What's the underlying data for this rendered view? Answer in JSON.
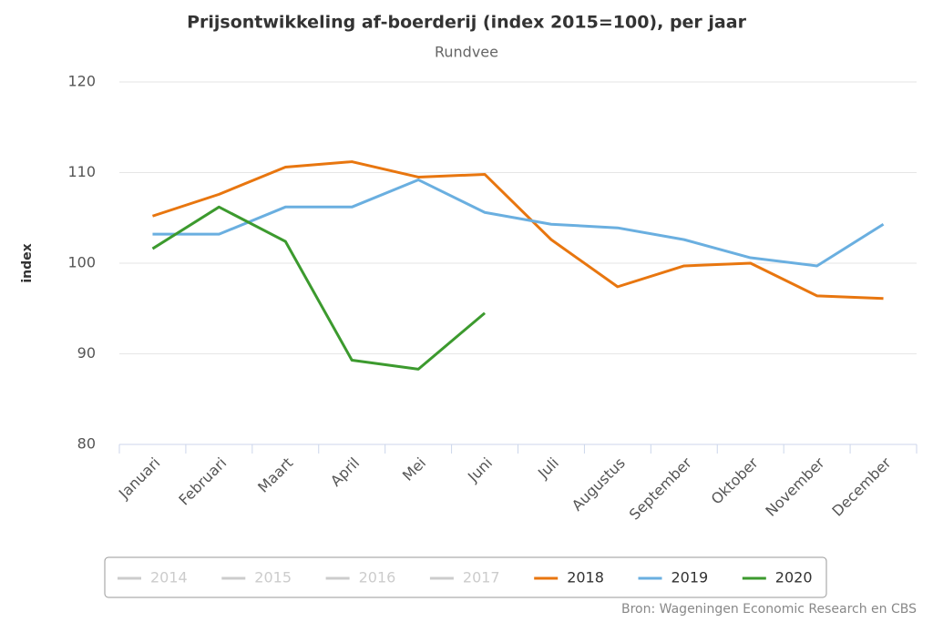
{
  "chart_data": {
    "type": "line",
    "title": "Prijsontwikkeling af-boerderij (index 2015=100), per jaar",
    "subtitle": "Rundvee",
    "y_label": "index",
    "source": "Bron: Wageningen Economic Research en CBS",
    "categories": [
      "Januari",
      "Februari",
      "Maart",
      "April",
      "Mei",
      "Juni",
      "Juli",
      "Augustus",
      "September",
      "Oktober",
      "November",
      "December"
    ],
    "ylim": [
      80,
      120
    ],
    "yticks": [
      80,
      90,
      100,
      110,
      120
    ],
    "grid": true,
    "series": [
      {
        "name": "2014",
        "color": "#cccccc",
        "visible": false,
        "values": [
          null,
          null,
          null,
          null,
          null,
          null,
          null,
          null,
          null,
          null,
          null,
          null
        ]
      },
      {
        "name": "2015",
        "color": "#cccccc",
        "visible": false,
        "values": [
          null,
          null,
          null,
          null,
          null,
          null,
          null,
          null,
          null,
          null,
          null,
          null
        ]
      },
      {
        "name": "2016",
        "color": "#cccccc",
        "visible": false,
        "values": [
          null,
          null,
          null,
          null,
          null,
          null,
          null,
          null,
          null,
          null,
          null,
          null
        ]
      },
      {
        "name": "2017",
        "color": "#cccccc",
        "visible": false,
        "values": [
          null,
          null,
          null,
          null,
          null,
          null,
          null,
          null,
          null,
          null,
          null,
          null
        ]
      },
      {
        "name": "2018",
        "color": "#e8760f",
        "visible": true,
        "values": [
          105.2,
          107.6,
          110.6,
          111.2,
          109.5,
          109.8,
          102.6,
          97.4,
          99.7,
          100.0,
          96.4,
          96.1
        ]
      },
      {
        "name": "2019",
        "color": "#6aafe0",
        "visible": true,
        "values": [
          103.2,
          103.2,
          106.2,
          106.2,
          109.2,
          105.6,
          104.3,
          103.9,
          102.6,
          100.6,
          99.7,
          104.3
        ]
      },
      {
        "name": "2020",
        "color": "#3c9a2e",
        "visible": true,
        "values": [
          101.6,
          106.2,
          102.4,
          89.3,
          88.3,
          94.5,
          null,
          null,
          null,
          null,
          null,
          null
        ]
      }
    ]
  }
}
